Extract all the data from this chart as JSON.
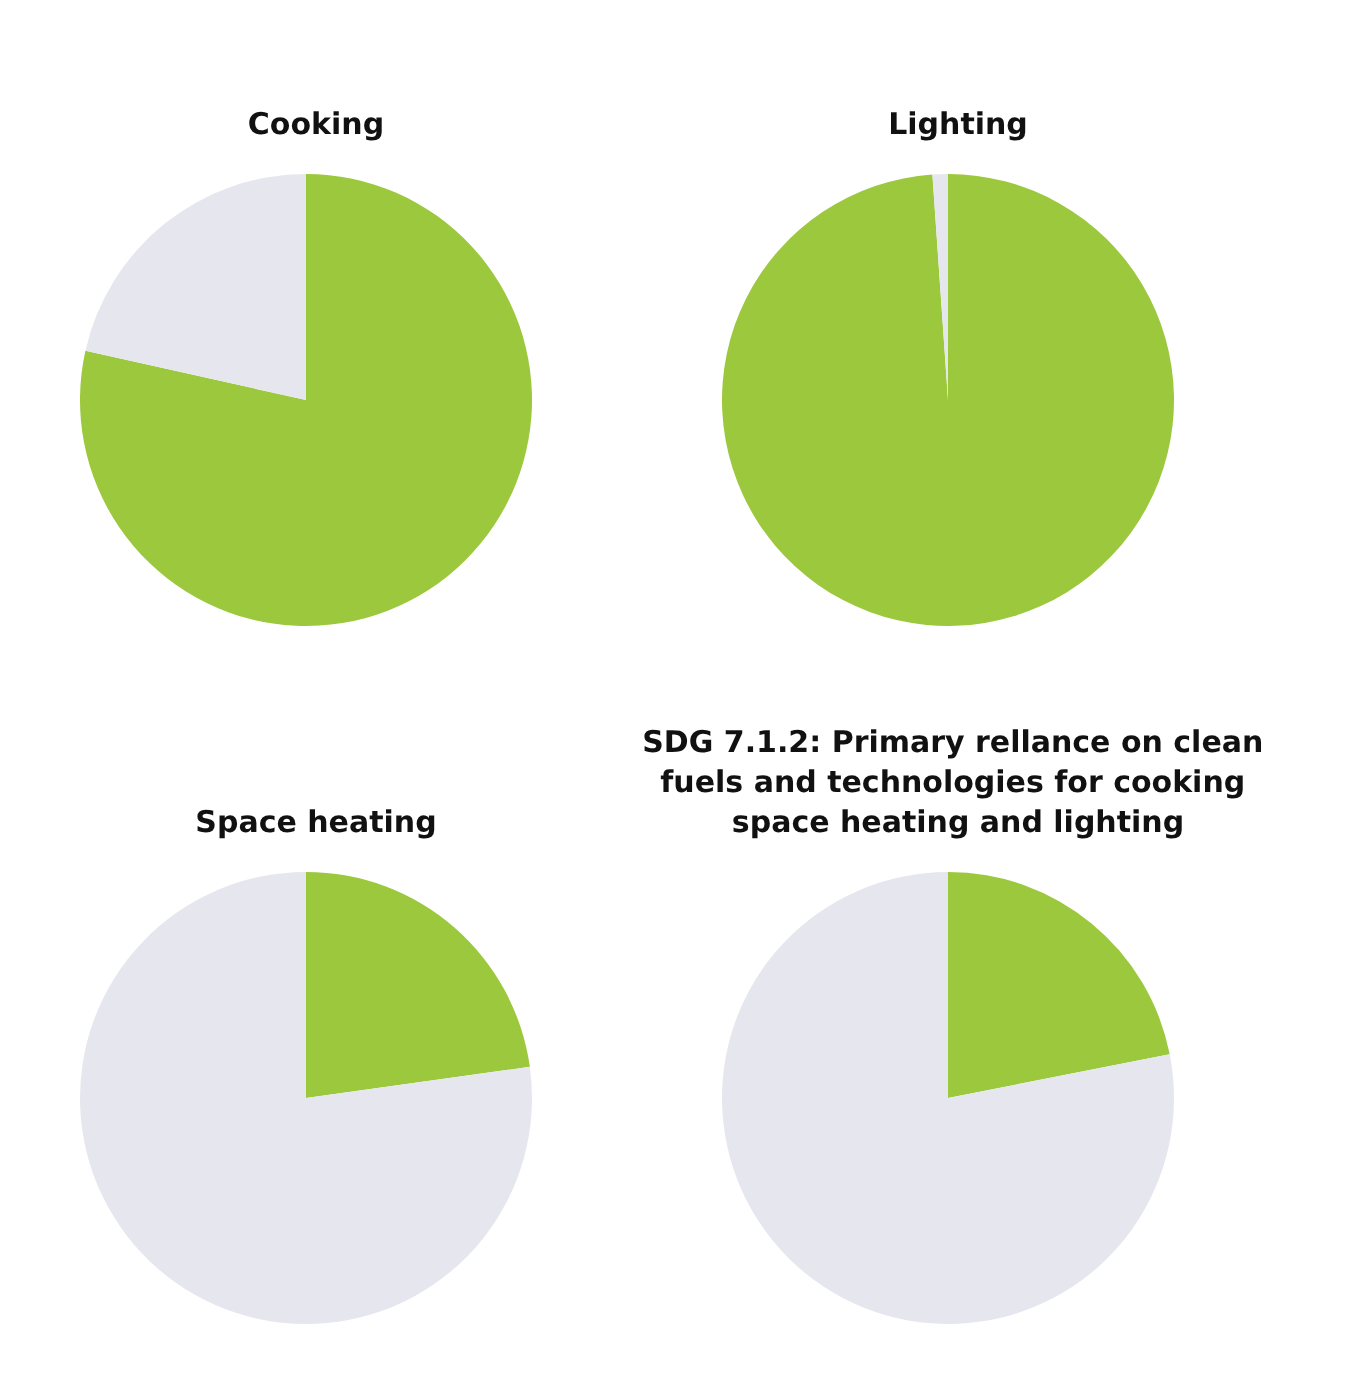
{
  "chart_data": [
    {
      "type": "pie",
      "title": "Cooking",
      "categories": [
        null,
        null
      ],
      "values": [
        78.5,
        21.5
      ],
      "colors": [
        "#9bc83c",
        "#e6e6ee"
      ]
    },
    {
      "type": "pie",
      "title": "Lighting",
      "categories": [
        null,
        null
      ],
      "values": [
        98.9,
        1.1
      ],
      "colors": [
        "#9bc83c",
        "#e6e6ee"
      ]
    },
    {
      "type": "pie",
      "title": "Space heating",
      "categories": [
        null,
        null
      ],
      "values": [
        22.8,
        77.2
      ],
      "colors": [
        "#9bc83c",
        "#e6e6ee"
      ]
    },
    {
      "type": "pie",
      "title": "SDG 7.1.2: Primary rellance on clean fuels and technologies for cooking space heating and lighting",
      "categories": [
        null,
        null
      ],
      "values": [
        21.9,
        78.1
      ],
      "colors": [
        "#9bc83c",
        "#e6e6ee"
      ]
    }
  ]
}
